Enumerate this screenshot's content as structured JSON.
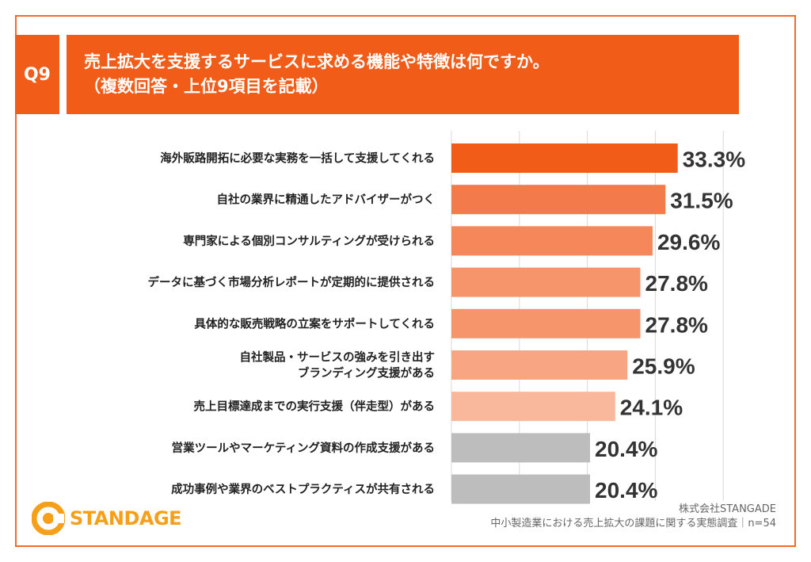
{
  "header": {
    "q_label": "Q9",
    "title_line1": "売上拡大を支援するサービスに求める機能や特徴は何ですか。",
    "title_line2": "（複数回答・上位9項目を記載）"
  },
  "chart_data": {
    "type": "bar",
    "orientation": "horizontal",
    "categories": [
      [
        "海外販路開拓に必要な実務を一括して支援してくれる"
      ],
      [
        "自社の業界に精通したアドバイザーがつく"
      ],
      [
        "専門家による個別コンサルティングが受けられる"
      ],
      [
        "データに基づく市場分析レポートが定期的に提供される"
      ],
      [
        "具体的な販売戦略の立案をサポートしてくれる"
      ],
      [
        "自社製品・サービスの強みを引き出す",
        "ブランディング支援がある"
      ],
      [
        "売上目標達成までの実行支援（伴走型）がある"
      ],
      [
        "営業ツールやマーケティング資料の作成支援がある"
      ],
      [
        "成功事例や業界のベストプラクティスが共有される"
      ]
    ],
    "values": [
      33.3,
      31.5,
      29.6,
      27.8,
      27.8,
      25.9,
      24.1,
      20.4,
      20.4
    ],
    "value_labels": [
      "33.3%",
      "31.5%",
      "29.6%",
      "27.8%",
      "27.8%",
      "25.9%",
      "24.1%",
      "20.4%",
      "20.4%"
    ],
    "colors": [
      "#f25c19",
      "#f37a4a",
      "#f5875a",
      "#f6946c",
      "#f6946c",
      "#f8a583",
      "#f9b79c",
      "#bdbdbd",
      "#bdbdbd"
    ],
    "xlim": [
      0,
      40
    ],
    "grid": true
  },
  "logo": {
    "text": "STANDAGE",
    "color": "#f6a01a"
  },
  "credit": {
    "company": "株式会社STANGADE",
    "survey": "中小製造業における売上拡大の課題に関する実態調査｜n=54"
  }
}
